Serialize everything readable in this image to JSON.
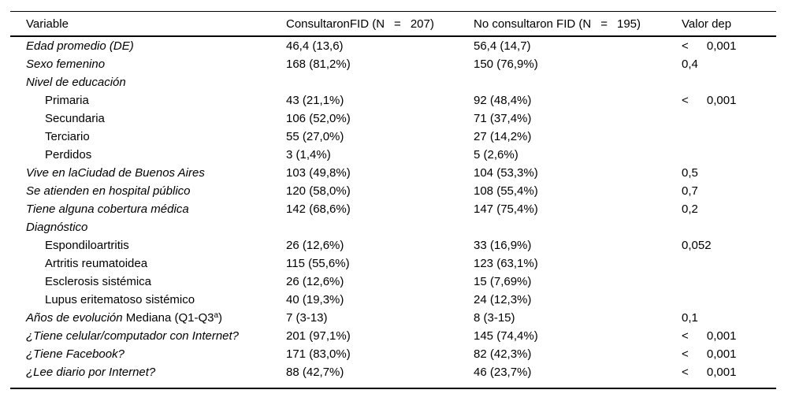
{
  "table": {
    "header": {
      "variable": "Variable",
      "group1": {
        "pre": "ConsultaronFID (N",
        "eq": "=",
        "num": "207)"
      },
      "group2": {
        "pre": "No consultaron FID (N",
        "eq": "=",
        "num": "195)"
      },
      "p_label": "Valor dep"
    },
    "rows": [
      {
        "parts": [
          {
            "text": "Edad promedio (DE)",
            "style": "italic"
          }
        ],
        "indent": false,
        "consultaron": "46,4 (13,6)",
        "no_consultaron": "56,4 (14,7)",
        "p": "< 0,001"
      },
      {
        "parts": [
          {
            "text": "Sexo femenino",
            "style": "italic"
          }
        ],
        "indent": false,
        "consultaron": "168 (81,2%)",
        "no_consultaron": "150 (76,9%)",
        "p": "0,4"
      },
      {
        "parts": [
          {
            "text": "Nivel de educación",
            "style": "italic"
          }
        ],
        "indent": false,
        "consultaron": "",
        "no_consultaron": "",
        "p": ""
      },
      {
        "parts": [
          {
            "text": "Primaria",
            "style": "roman"
          }
        ],
        "indent": true,
        "consultaron": "43 (21,1%)",
        "no_consultaron": "92 (48,4%)",
        "p": "< 0,001"
      },
      {
        "parts": [
          {
            "text": "Secundaria",
            "style": "roman"
          }
        ],
        "indent": true,
        "consultaron": "106 (52,0%)",
        "no_consultaron": "71 (37,4%)",
        "p": ""
      },
      {
        "parts": [
          {
            "text": "Terciario",
            "style": "roman"
          }
        ],
        "indent": true,
        "consultaron": "55 (27,0%)",
        "no_consultaron": "27 (14,2%)",
        "p": ""
      },
      {
        "parts": [
          {
            "text": "Perdidos",
            "style": "roman"
          }
        ],
        "indent": true,
        "consultaron": "3 (1,4%)",
        "no_consultaron": "5 (2,6%)",
        "p": ""
      },
      {
        "parts": [
          {
            "text": "Vive en laCiudad de Buenos Aires",
            "style": "italic"
          }
        ],
        "indent": false,
        "consultaron": "103 (49,8%)",
        "no_consultaron": "104 (53,3%)",
        "p": "0,5"
      },
      {
        "parts": [
          {
            "text": "Se atienden en hospital público",
            "style": "italic"
          }
        ],
        "indent": false,
        "consultaron": "120 (58,0%)",
        "no_consultaron": "108 (55,4%)",
        "p": "0,7"
      },
      {
        "parts": [
          {
            "text": "Tiene alguna cobertura médica",
            "style": "italic"
          }
        ],
        "indent": false,
        "consultaron": "142 (68,6%)",
        "no_consultaron": "147 (75,4%)",
        "p": "0,2"
      },
      {
        "parts": [
          {
            "text": "Diagnóstico",
            "style": "italic"
          }
        ],
        "indent": false,
        "consultaron": "",
        "no_consultaron": "",
        "p": ""
      },
      {
        "parts": [
          {
            "text": "Espondiloartritis",
            "style": "roman"
          }
        ],
        "indent": true,
        "consultaron": "26 (12,6%)",
        "no_consultaron": "33 (16,9%)",
        "p": "0,052"
      },
      {
        "parts": [
          {
            "text": "Artritis reumatoidea",
            "style": "roman"
          }
        ],
        "indent": true,
        "consultaron": "115 (55,6%)",
        "no_consultaron": "123 (63,1%)",
        "p": ""
      },
      {
        "parts": [
          {
            "text": "Esclerosis sistémica",
            "style": "roman"
          }
        ],
        "indent": true,
        "consultaron": "26 (12,6%)",
        "no_consultaron": "15 (7,69%)",
        "p": ""
      },
      {
        "parts": [
          {
            "text": "Lupus eritematoso sistémico",
            "style": "roman"
          }
        ],
        "indent": true,
        "consultaron": "40 (19,3%)",
        "no_consultaron": "24 (12,3%)",
        "p": ""
      },
      {
        "parts": [
          {
            "text": "Años de evolución",
            "style": "italic"
          },
          {
            "text": " Mediana (Q1-Q3",
            "style": "roman"
          },
          {
            "text": "a",
            "style": "sup"
          },
          {
            "text": ")",
            "style": "roman"
          }
        ],
        "indent": false,
        "consultaron": "7 (3-13)",
        "no_consultaron": "8 (3-15)",
        "p": "0,1"
      },
      {
        "parts": [
          {
            "text": "¿Tiene celular/computador con Internet?",
            "style": "italic"
          }
        ],
        "indent": false,
        "consultaron": "201 (97,1%)",
        "no_consultaron": "145 (74,4%)",
        "p": "< 0,001"
      },
      {
        "parts": [
          {
            "text": "¿Tiene Facebook?",
            "style": "italic"
          }
        ],
        "indent": false,
        "consultaron": "171 (83,0%)",
        "no_consultaron": "82 (42,3%)",
        "p": "< 0,001"
      },
      {
        "parts": [
          {
            "text": "¿Lee diario por Internet?",
            "style": "italic"
          }
        ],
        "indent": false,
        "consultaron": "88 (42,7%)",
        "no_consultaron": "46 (23,7%)",
        "p": "< 0,001"
      }
    ]
  },
  "colors": {
    "text": "#000000",
    "rule": "#000000",
    "background": "#ffffff"
  }
}
